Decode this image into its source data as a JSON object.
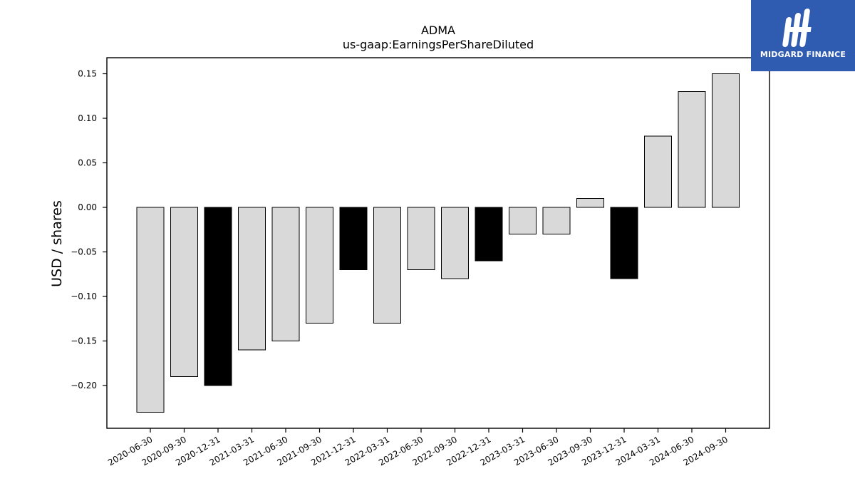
{
  "logo": {
    "text": "MIDGARD FINANCE",
    "bg_color": "#2f5bb0"
  },
  "chart_data": {
    "type": "bar",
    "title": "ADMA",
    "subtitle": "us-gaap:EarningsPerShareDiluted",
    "xlabel": "",
    "ylabel": "USD / shares",
    "ylim": [
      -0.248,
      0.168
    ],
    "yticks": [
      -0.2,
      -0.15,
      -0.1,
      -0.05,
      0.0,
      0.05,
      0.1,
      0.15
    ],
    "ytick_labels": [
      "−0.20",
      "−0.15",
      "−0.10",
      "−0.05",
      "0.00",
      "0.05",
      "0.10",
      "0.15"
    ],
    "grid": false,
    "categories": [
      "2020-06-30",
      "2020-09-30",
      "2020-12-31",
      "2021-03-31",
      "2021-06-30",
      "2021-09-30",
      "2021-12-31",
      "2022-03-31",
      "2022-06-30",
      "2022-09-30",
      "2022-12-31",
      "2023-03-31",
      "2023-06-30",
      "2023-09-30",
      "2023-12-31",
      "2024-03-31",
      "2024-06-30",
      "2024-09-30"
    ],
    "values": [
      -0.23,
      -0.19,
      -0.2,
      -0.16,
      -0.15,
      -0.13,
      -0.07,
      -0.13,
      -0.07,
      -0.08,
      -0.06,
      -0.03,
      -0.03,
      0.01,
      -0.08,
      0.08,
      0.13,
      0.15
    ],
    "colors": {
      "quarter": "#d9d9d9",
      "year_end": "#000000",
      "edge": "#000000"
    },
    "year_end_indices": [
      2,
      6,
      10,
      14
    ]
  }
}
